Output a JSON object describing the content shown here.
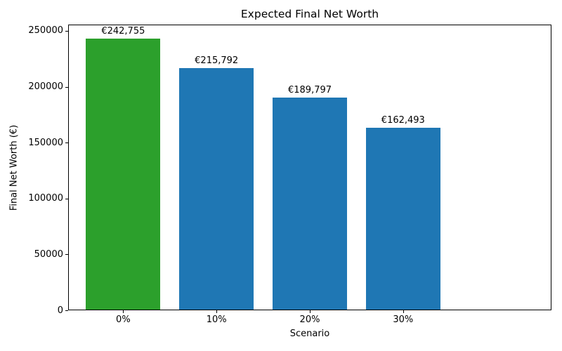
{
  "chart_data": {
    "type": "bar",
    "title": "Expected Final Net Worth",
    "xlabel": "Scenario",
    "ylabel": "Final Net Worth (€)",
    "categories": [
      "0%",
      "10%",
      "20%",
      "30%"
    ],
    "values": [
      242755,
      215792,
      189797,
      162493
    ],
    "value_labels": [
      "€242,755",
      "€215,792",
      "€189,797",
      "€162,493"
    ],
    "bar_colors": [
      "#2ca02c",
      "#1f77b4",
      "#1f77b4",
      "#1f77b4"
    ],
    "y_ticks": [
      0,
      50000,
      100000,
      150000,
      200000,
      250000
    ],
    "y_tick_labels": [
      "0",
      "50000",
      "100000",
      "150000",
      "200000",
      "250000"
    ],
    "ylim": [
      0,
      255650
    ],
    "grid": false,
    "legend": "none",
    "background": "#ffffff",
    "text_color": "#000000",
    "spine_color": "#000000"
  }
}
